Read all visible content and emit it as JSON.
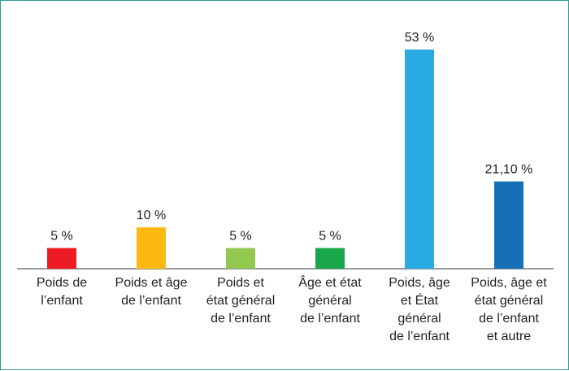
{
  "chart_data": {
    "type": "bar",
    "categories": [
      [
        "Poids de",
        "l’enfant"
      ],
      [
        "Poids et âge",
        "de l’enfant"
      ],
      [
        "Poids et",
        "état général",
        "de l’enfant"
      ],
      [
        "Âge et état",
        "général",
        "de l’enfant"
      ],
      [
        "Poids, âge",
        "et État",
        "général",
        "de l’enfant"
      ],
      [
        "Poids, âge et",
        "état général",
        "de l’enfant",
        "et autre"
      ]
    ],
    "values": [
      5,
      10,
      5,
      5,
      53,
      21.1
    ],
    "value_labels": [
      "5 %",
      "10 %",
      "5 %",
      "5 %",
      "53 %",
      "21,10 %"
    ],
    "colors": [
      "#ed1c24",
      "#fdb913",
      "#92c850",
      "#1aa64a",
      "#29abe2",
      "#1570b8"
    ],
    "ylim": [
      0,
      53
    ],
    "title": "",
    "xlabel": "",
    "ylabel": "",
    "grid": false,
    "legend": "none"
  }
}
